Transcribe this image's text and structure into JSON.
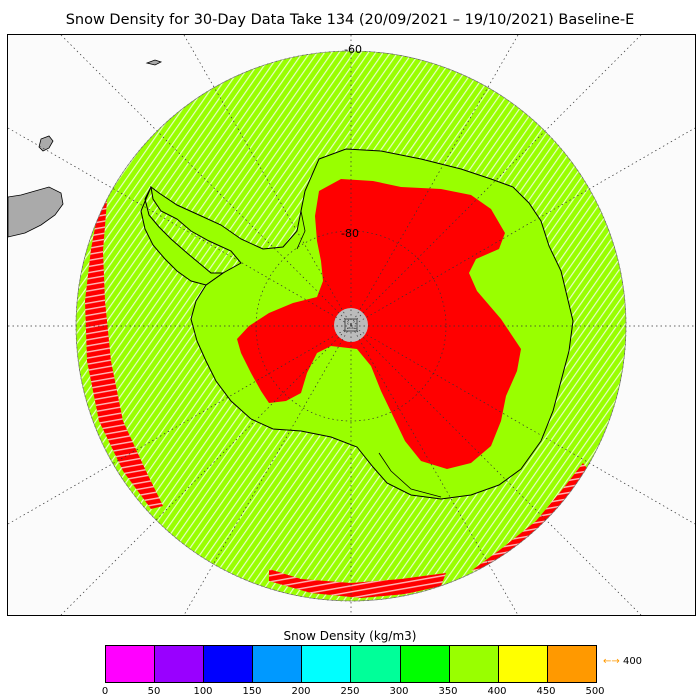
{
  "title": "Snow Density for 30-Day Data Take 134 (20/09/2021 – 19/10/2021) Baseline-E",
  "map": {
    "projection": "south-polar-stereographic",
    "latitude_labels": [
      "-60",
      "-80"
    ]
  },
  "colorbar": {
    "title": "Snow Density (kg/m3)",
    "ticks": [
      "0",
      "50",
      "100",
      "150",
      "200",
      "250",
      "300",
      "350",
      "400",
      "450",
      "500"
    ],
    "colors": [
      "#ff00ff",
      "#9900ff",
      "#0000ff",
      "#0099ff",
      "#00ffff",
      "#00ff99",
      "#00ff00",
      "#99ff00",
      "#ffff00",
      "#ff9900"
    ],
    "overflow_arrow": "←→",
    "overflow_label": "400"
  },
  "field_colors": {
    "land_ice": "#99ff00",
    "sea_ice": "#99ff00",
    "high_density": "#ff0000",
    "pole_hole": "#bbbbbb",
    "other_land": "#aaaaaa"
  }
}
